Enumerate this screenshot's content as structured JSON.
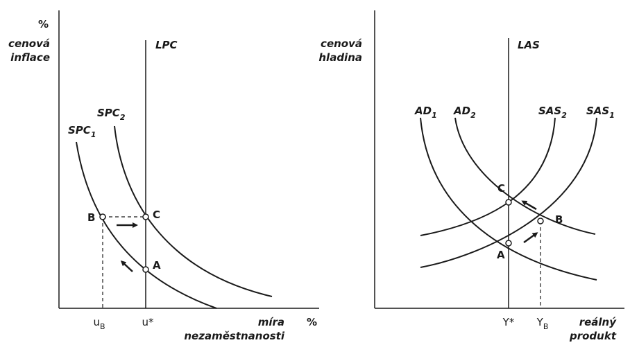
{
  "left_panel": {
    "y_axis_unit": "%",
    "y_axis_label": [
      "cenová",
      "inflace"
    ],
    "lpc_label": "LPC",
    "spc2_label": {
      "text": "SPC",
      "sub": "2"
    },
    "spc1_label": {
      "text": "SPC",
      "sub": "1"
    },
    "points": {
      "b": "B",
      "c": "C",
      "a": "A"
    },
    "x_ticks": {
      "ub": {
        "text": "u",
        "sub": "B"
      },
      "ustar": "u*"
    },
    "x_axis_label": [
      "míra",
      "nezaměstnanosti"
    ],
    "x_axis_unit": "%"
  },
  "right_panel": {
    "y_axis_label": [
      "cenová",
      "hladina"
    ],
    "las_label": "LAS",
    "ad1_label": {
      "text": "AD",
      "sub": "1"
    },
    "ad2_label": {
      "text": "AD",
      "sub": "2"
    },
    "sas2_label": {
      "text": "SAS",
      "sub": "2"
    },
    "sas1_label": {
      "text": "SAS",
      "sub": "1"
    },
    "points": {
      "c": "C",
      "b": "B",
      "a": "A"
    },
    "x_ticks": {
      "ystar": "Y*",
      "yb": {
        "text": "Y",
        "sub": "B"
      }
    },
    "x_axis_label": [
      "reálný",
      "produkt"
    ]
  }
}
